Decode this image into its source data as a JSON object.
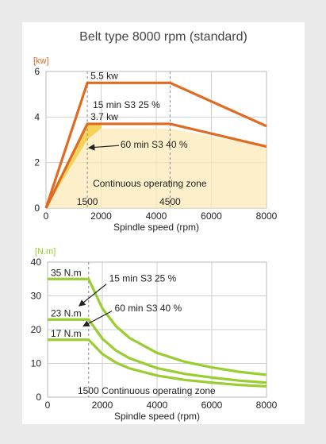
{
  "title": "Belt type 8000 rpm (standard)",
  "colors": {
    "power": "#e06a20",
    "torque": "#9acd32",
    "power_fill": "#f5d35a",
    "panel": "#eaeaea",
    "grid": "#cfcfcf"
  },
  "chart_data": [
    {
      "type": "line",
      "title": "Belt type 8000 rpm (standard)",
      "ylabel": "[kw]",
      "xlabel": "Spindle speed (rpm)",
      "xlim": [
        0,
        8000
      ],
      "ylim": [
        0,
        6
      ],
      "xticks": [
        "0",
        "2000",
        "4000",
        "6000",
        "8000"
      ],
      "yticks": [
        "0",
        "2",
        "4",
        "6"
      ],
      "grid": true,
      "series": [
        {
          "name": "15 min S3 25 %",
          "x": [
            0,
            1500,
            4500,
            8000
          ],
          "y": [
            0,
            5.5,
            5.5,
            3.6
          ]
        },
        {
          "name": "60 min S3 40 %",
          "x": [
            0,
            1500,
            4500,
            8000
          ],
          "y": [
            0,
            3.7,
            3.7,
            2.7
          ]
        },
        {
          "name": "Continuous operating zone",
          "x": [
            0,
            1500,
            2000,
            4500,
            8000
          ],
          "y": [
            0,
            3.0,
            3.5,
            3.5,
            2.7
          ]
        }
      ],
      "annotations": [
        {
          "text": "5.5 kw",
          "x": 1500,
          "y": 5.5
        },
        {
          "text": "3.7 kw",
          "x": 1500,
          "y": 3.7
        },
        {
          "text": "15 min S3 25 %",
          "x": 2000,
          "y": 4.5
        },
        {
          "text": "60 min S3 40 %",
          "x": 2200,
          "y": 2.7
        },
        {
          "text": "Continuous operating zone",
          "x": 1800,
          "y": 1.0
        },
        {
          "text": "1500",
          "x": 1500,
          "y": 0.15
        },
        {
          "text": "4500",
          "x": 4500,
          "y": 0.15
        }
      ]
    },
    {
      "type": "line",
      "ylabel": "[N.m]",
      "xlabel": "Spindle speed (rpm)",
      "xlim": [
        0,
        8000
      ],
      "ylim": [
        0,
        40
      ],
      "xticks": [
        "0",
        "2000",
        "4000",
        "6000",
        "8000"
      ],
      "yticks": [
        "0",
        "10",
        "20",
        "30",
        "40"
      ],
      "grid": true,
      "series": [
        {
          "name": "15 min S3 25 %",
          "x": [
            0,
            1500,
            2000,
            2500,
            3000,
            4000,
            5000,
            6000,
            7000,
            8000
          ],
          "y": [
            35,
            35,
            26.3,
            21.0,
            17.5,
            13.1,
            10.5,
            8.8,
            7.5,
            6.6
          ]
        },
        {
          "name": "60 min S3 40 %",
          "x": [
            0,
            1500,
            2000,
            2500,
            3000,
            4000,
            5000,
            6000,
            7000,
            8000
          ],
          "y": [
            23,
            23,
            17.3,
            13.8,
            11.5,
            8.6,
            6.9,
            5.8,
            4.9,
            4.3
          ]
        },
        {
          "name": "Continuous operating zone",
          "x": [
            0,
            1500,
            2000,
            2500,
            3000,
            4000,
            5000,
            6000,
            7000,
            8000
          ],
          "y": [
            17,
            17,
            12.8,
            10.2,
            8.5,
            6.4,
            5.1,
            4.3,
            3.6,
            3.2
          ]
        }
      ],
      "annotations": [
        {
          "text": "35 N.m",
          "x": 1500,
          "y": 35
        },
        {
          "text": "23 N.m",
          "x": 1500,
          "y": 23
        },
        {
          "text": "17 N.m",
          "x": 1500,
          "y": 17
        },
        {
          "text": "15 min S3 25 %",
          "x": 2200,
          "y": 34
        },
        {
          "text": "60 min S3 40 %",
          "x": 2400,
          "y": 25.5
        },
        {
          "text": "1500",
          "x": 1500,
          "y": 1
        },
        {
          "text": "Continuous operating zone",
          "x": 2000,
          "y": 1
        }
      ]
    }
  ]
}
